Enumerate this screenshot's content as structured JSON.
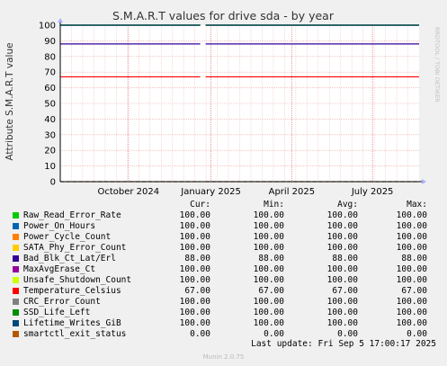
{
  "chart_data": {
    "type": "line",
    "title": "S.M.A.R.T values for drive sda - by year",
    "ylabel": "Attribute S.M.A.R.T value",
    "ylim": [
      0,
      100
    ],
    "yticks": [
      "0",
      "10",
      "20",
      "30",
      "40",
      "50",
      "60",
      "70",
      "80",
      "90",
      "100"
    ],
    "xticks": [
      "October 2024",
      "January 2025",
      "April 2025",
      "July 2025"
    ],
    "grid": true,
    "gap_fraction": [
      0.39,
      0.405
    ],
    "series": [
      {
        "name": "Raw_Read_Error_Rate",
        "color": "#00cc00",
        "value": 100
      },
      {
        "name": "Power_On_Hours",
        "color": "#0066b3",
        "value": 100
      },
      {
        "name": "Power_Cycle_Count",
        "color": "#ff8000",
        "value": 100
      },
      {
        "name": "SATA_Phy_Error_Count",
        "color": "#ffcc00",
        "value": 100
      },
      {
        "name": "Bad_Blk_Ct_Lat/Erl",
        "color": "#330099",
        "value": 88
      },
      {
        "name": "MaxAvgErase_Ct",
        "color": "#990099",
        "value": 100
      },
      {
        "name": "Unsafe_Shutdown_Count",
        "color": "#ccff00",
        "value": 100
      },
      {
        "name": "Temperature_Celsius",
        "color": "#ff0000",
        "value": 67
      },
      {
        "name": "CRC_Error_Count",
        "color": "#808080",
        "value": 100
      },
      {
        "name": "SSD_Life_Left",
        "color": "#008f00",
        "value": 100
      },
      {
        "name": "Lifetime_Writes_GiB",
        "color": "#00487d",
        "value": 100
      },
      {
        "name": "smartctl_exit_status",
        "color": "#b35a00",
        "value": 0
      }
    ]
  },
  "side_label": "RRDTOOL / TOBI OETIKER",
  "legend": {
    "headers": {
      "cur": "Cur:",
      "min": "Min:",
      "avg": "Avg:",
      "max": "Max:"
    },
    "rows": [
      {
        "cur": "100.00",
        "min": "100.00",
        "avg": "100.00",
        "max": "100.00"
      },
      {
        "cur": "100.00",
        "min": "100.00",
        "avg": "100.00",
        "max": "100.00"
      },
      {
        "cur": "100.00",
        "min": "100.00",
        "avg": "100.00",
        "max": "100.00"
      },
      {
        "cur": "100.00",
        "min": "100.00",
        "avg": "100.00",
        "max": "100.00"
      },
      {
        "cur": "88.00",
        "min": "88.00",
        "avg": "88.00",
        "max": "88.00"
      },
      {
        "cur": "100.00",
        "min": "100.00",
        "avg": "100.00",
        "max": "100.00"
      },
      {
        "cur": "100.00",
        "min": "100.00",
        "avg": "100.00",
        "max": "100.00"
      },
      {
        "cur": "67.00",
        "min": "67.00",
        "avg": "67.00",
        "max": "67.00"
      },
      {
        "cur": "100.00",
        "min": "100.00",
        "avg": "100.00",
        "max": "100.00"
      },
      {
        "cur": "100.00",
        "min": "100.00",
        "avg": "100.00",
        "max": "100.00"
      },
      {
        "cur": "100.00",
        "min": "100.00",
        "avg": "100.00",
        "max": "100.00"
      },
      {
        "cur": "0.00",
        "min": "0.00",
        "avg": "0.00",
        "max": "0.00"
      }
    ]
  },
  "last_update": "Last update: Fri Sep  5 17:00:17 2025",
  "footer": "Munin 2.0.75"
}
